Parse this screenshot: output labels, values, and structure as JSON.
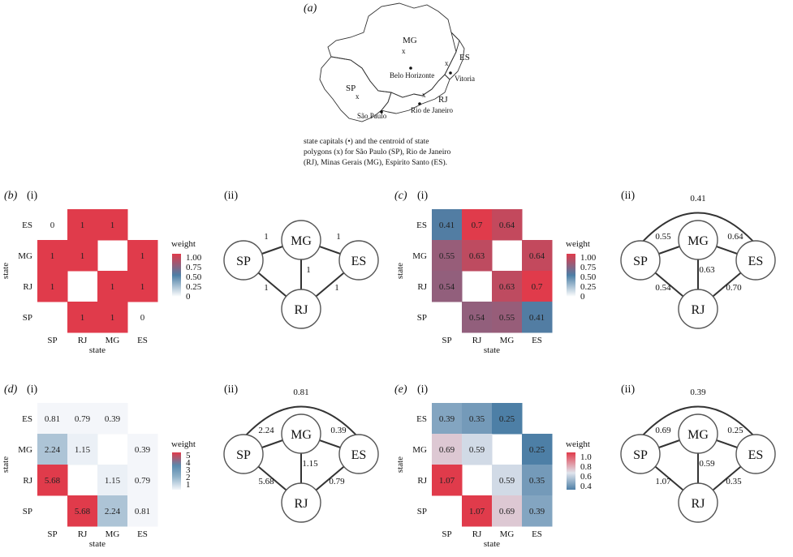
{
  "map": {
    "panel_label": "(a)",
    "states": [
      "MG",
      "ES",
      "SP",
      "RJ"
    ],
    "capitals": [
      "Belo Horizonte",
      "Vitoria",
      "São Paulo",
      "Rio de Janeiro"
    ],
    "centroid_mark": "x",
    "caption": [
      "state capitals (•) and the centroid of state",
      "polygons (x) for São Paulo (SP), Rio de Janeiro",
      "(RJ), Minas Gerais (MG), Espirito Santo (ES)."
    ]
  },
  "panels": [
    {
      "letter": "(b)",
      "sub_i": "(i)",
      "sub_ii": "(ii)",
      "legend_title": "weight",
      "legend_ticks": [
        "1.00",
        "0.75",
        "0.50",
        "0.25",
        "0"
      ],
      "scale_min": 0,
      "scale_max": 1
    },
    {
      "letter": "(c)",
      "sub_i": "(i)",
      "sub_ii": "(ii)",
      "legend_title": "weight",
      "legend_ticks": [
        "1.00",
        "0.75",
        "0.50",
        "0.25",
        "0"
      ],
      "scale_min": 0,
      "scale_max": 1
    },
    {
      "letter": "(d)",
      "sub_i": "(i)",
      "sub_ii": "(ii)",
      "legend_title": "weight",
      "legend_ticks": [
        "5",
        "4",
        "3",
        "2",
        "1"
      ],
      "scale_min": 1,
      "scale_max": 5.68
    },
    {
      "letter": "(e)",
      "sub_i": "(i)",
      "sub_ii": "(ii)",
      "legend_title": "weight",
      "legend_ticks": [
        "1.0",
        "0.8",
        "0.6",
        "0.4"
      ],
      "scale_min": 0.25,
      "scale_max": 1.07
    }
  ],
  "chart_data": [
    {
      "type": "heatmap",
      "xlabel": "state",
      "ylabel": "state",
      "x_categories": [
        "SP",
        "RJ",
        "MG",
        "ES"
      ],
      "y_categories": [
        "ES",
        "MG",
        "RJ",
        "SP"
      ],
      "values": [
        [
          0,
          1,
          1,
          null
        ],
        [
          1,
          1,
          null,
          1
        ],
        [
          1,
          null,
          1,
          1
        ],
        [
          null,
          1,
          1,
          0
        ]
      ]
    },
    {
      "type": "heatmap",
      "xlabel": "state",
      "ylabel": "state",
      "x_categories": [
        "SP",
        "RJ",
        "MG",
        "ES"
      ],
      "y_categories": [
        "ES",
        "MG",
        "RJ",
        "SP"
      ],
      "values": [
        [
          0.41,
          0.7,
          0.64,
          null
        ],
        [
          0.55,
          0.63,
          null,
          0.64
        ],
        [
          0.54,
          null,
          0.63,
          0.7
        ],
        [
          null,
          0.54,
          0.55,
          0.41
        ]
      ]
    },
    {
      "type": "heatmap",
      "xlabel": "state",
      "ylabel": "state",
      "x_categories": [
        "SP",
        "RJ",
        "MG",
        "ES"
      ],
      "y_categories": [
        "ES",
        "MG",
        "RJ",
        "SP"
      ],
      "values": [
        [
          0.81,
          0.79,
          0.39,
          null
        ],
        [
          2.24,
          1.15,
          null,
          0.39
        ],
        [
          5.68,
          null,
          1.15,
          0.79
        ],
        [
          null,
          5.68,
          2.24,
          0.81
        ]
      ]
    },
    {
      "type": "heatmap",
      "xlabel": "state",
      "ylabel": "state",
      "x_categories": [
        "SP",
        "RJ",
        "MG",
        "ES"
      ],
      "y_categories": [
        "ES",
        "MG",
        "RJ",
        "SP"
      ],
      "values": [
        [
          0.39,
          0.35,
          0.25,
          null
        ],
        [
          0.69,
          0.59,
          null,
          0.25
        ],
        [
          1.07,
          null,
          0.59,
          0.35
        ],
        [
          null,
          1.07,
          0.69,
          0.39
        ]
      ]
    }
  ],
  "graphs": [
    {
      "nodes": [
        "SP",
        "MG",
        "ES",
        "RJ"
      ],
      "edges": {
        "SP-MG": "1",
        "MG-ES": "1",
        "MG-RJ": "1",
        "SP-RJ": "1",
        "ES-RJ": "1"
      }
    },
    {
      "nodes": [
        "SP",
        "MG",
        "ES",
        "RJ"
      ],
      "edges": {
        "SP-ES": "0.41",
        "SP-MG": "0.55",
        "MG-ES": "0.64",
        "MG-RJ": "0.63",
        "SP-RJ": "0.54",
        "ES-RJ": "0.70"
      }
    },
    {
      "nodes": [
        "SP",
        "MG",
        "ES",
        "RJ"
      ],
      "edges": {
        "SP-ES": "0.81",
        "SP-MG": "2.24",
        "MG-ES": "0.39",
        "MG-RJ": "1.15",
        "SP-RJ": "5.68",
        "ES-RJ": "0.79"
      }
    },
    {
      "nodes": [
        "SP",
        "MG",
        "ES",
        "RJ"
      ],
      "edges": {
        "SP-ES": "0.39",
        "SP-MG": "0.69",
        "MG-ES": "0.25",
        "MG-RJ": "0.59",
        "SP-RJ": "1.07",
        "ES-RJ": "0.35"
      }
    }
  ]
}
